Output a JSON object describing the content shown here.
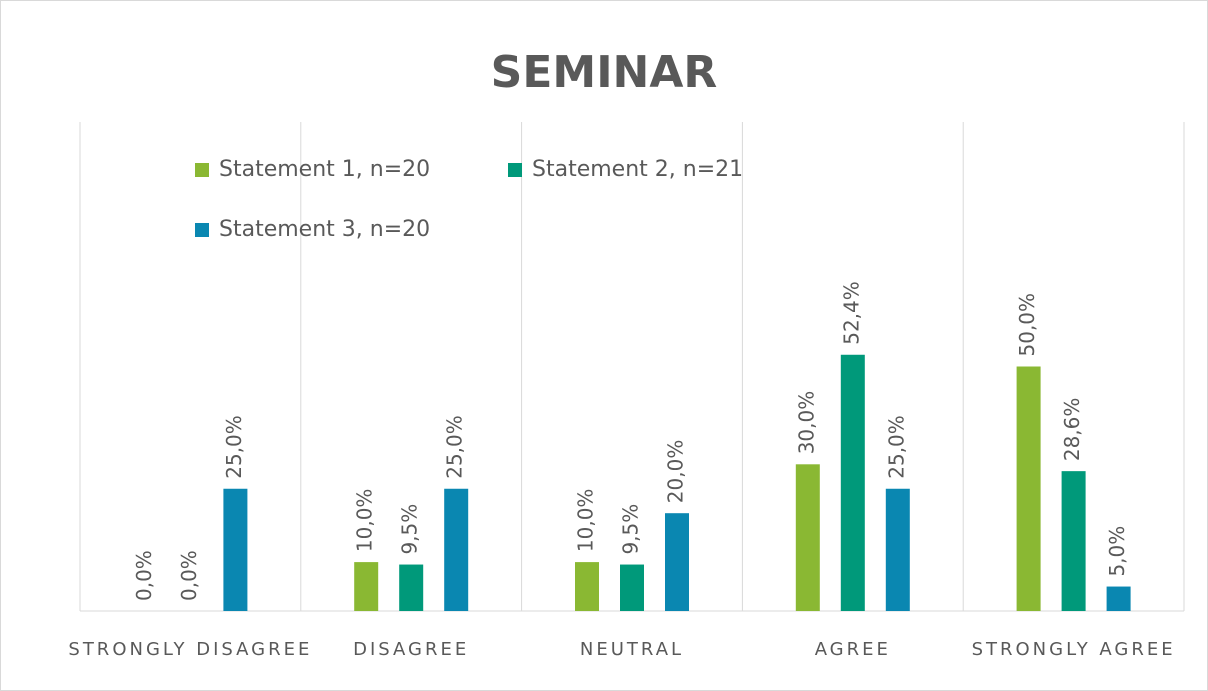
{
  "chart_data": {
    "type": "bar",
    "title": "SEMINAR",
    "categories": [
      "STRONGLY DISAGREE",
      "DISAGREE",
      "NEUTRAL",
      "AGREE",
      "STRONGLY AGREE"
    ],
    "series": [
      {
        "name": "Statement 1, n=20",
        "color": "#8ab833",
        "values": [
          0,
          10,
          10,
          30,
          50
        ],
        "value_labels": [
          "0,0%",
          "10,0%",
          "10,0%",
          "30,0%",
          "50,0%"
        ]
      },
      {
        "name": "Statement 2, n=21",
        "color": "#00997a",
        "values": [
          0,
          9.5,
          9.5,
          52.4,
          28.6
        ],
        "value_labels": [
          "0,0%",
          "9,5%",
          "9,5%",
          "52,4%",
          "28,6%"
        ]
      },
      {
        "name": "Statement 3, n=20",
        "color": "#0a87b1",
        "values": [
          25,
          25,
          20,
          25,
          5
        ],
        "value_labels": [
          "25,0%",
          "25,0%",
          "20,0%",
          "25,0%",
          "5,0%"
        ]
      }
    ],
    "ylim": [
      0,
      100
    ],
    "legend": "top-left"
  }
}
